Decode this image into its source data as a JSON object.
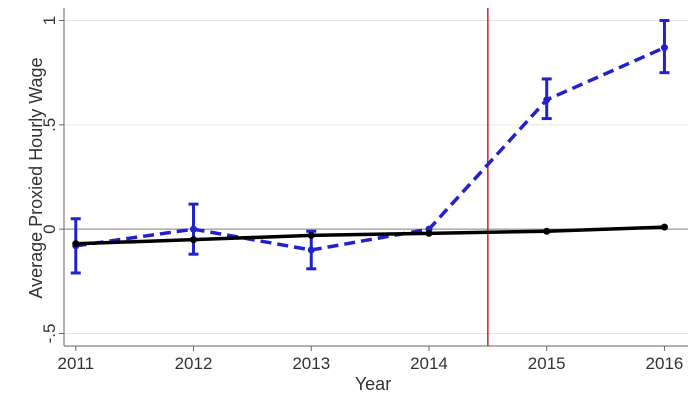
{
  "chart_data": {
    "type": "line",
    "title": "",
    "xlabel": "Year",
    "ylabel": "Average Proxied Hourly Wage",
    "x": [
      2011,
      2012,
      2013,
      2014,
      2015,
      2016
    ],
    "x_ticks": [
      "2011",
      "2012",
      "2013",
      "2014",
      "2015",
      "2016"
    ],
    "y_ticks": [
      {
        "value": 1,
        "label": "1"
      },
      {
        "value": 0.5,
        "label": ".5"
      },
      {
        "value": 0,
        "label": "0"
      },
      {
        "value": -0.5,
        "label": "-.5"
      }
    ],
    "xlim": [
      2010.9,
      2016.2
    ],
    "ylim": [
      -0.56,
      1.06
    ],
    "grid": true,
    "reference_line_y": 0,
    "vertical_line_x": 2014.5,
    "series": [
      {
        "style": "dashed",
        "color": "#2222cc",
        "values": [
          -0.08,
          0.0,
          -0.1,
          0.0,
          0.62,
          0.87
        ],
        "ci_low": [
          -0.21,
          -0.12,
          -0.19,
          null,
          0.53,
          0.75
        ],
        "ci_high": [
          0.05,
          0.12,
          -0.01,
          null,
          0.72,
          1.0
        ]
      },
      {
        "style": "solid",
        "color": "#000000",
        "values": [
          -0.07,
          -0.05,
          -0.03,
          -0.02,
          -0.01,
          0.01
        ]
      }
    ],
    "colors": {
      "vertical_line": "#cc2233",
      "grid": "#e6e6e6",
      "reference_line": "#999999",
      "axis": "#666666"
    }
  }
}
